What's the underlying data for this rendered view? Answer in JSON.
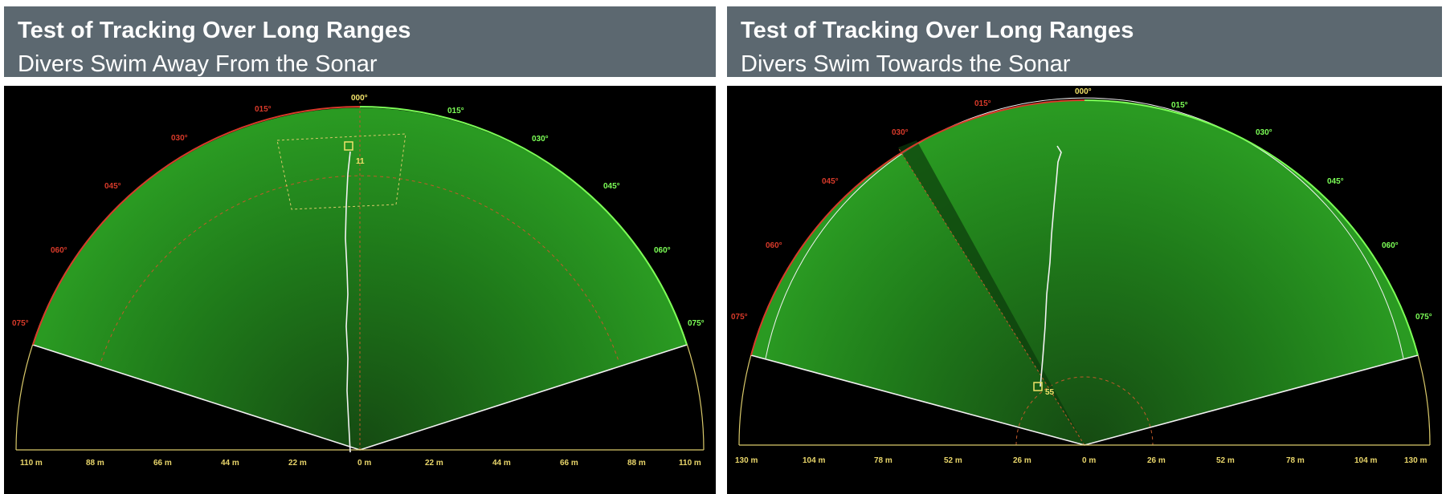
{
  "colors": {
    "header_bg": "#5c6870",
    "sonar_bg": "#000000",
    "sonar_fill": "#1f7a1a",
    "range_label": "#e8d56a",
    "bearing_left": "#d83a2a",
    "bearing_right": "#7cff57",
    "track": "#f2f2f2"
  },
  "panels": [
    {
      "title": "Test of Tracking Over Long Ranges",
      "subtitle": "Divers Swim Away From the Sonar",
      "bearings_left": [
        "000°",
        "015°",
        "030°",
        "045°",
        "060°",
        "075°"
      ],
      "bearings_right": [
        "015°",
        "030°",
        "045°",
        "060°",
        "075°"
      ],
      "range_labels": [
        "110 m",
        "88 m",
        "66 m",
        "44 m",
        "22 m",
        "0 m",
        "22 m",
        "44 m",
        "66 m",
        "88 m",
        "110 m"
      ],
      "target_label": "11"
    },
    {
      "title": "Test of Tracking Over Long Ranges",
      "subtitle": "Divers Swim Towards the Sonar",
      "bearings_left": [
        "000°",
        "015°",
        "030°",
        "045°",
        "060°",
        "075°"
      ],
      "bearings_right": [
        "015°",
        "030°",
        "045°",
        "060°",
        "075°"
      ],
      "range_labels": [
        "130 m",
        "104 m",
        "78 m",
        "52 m",
        "26 m",
        "0 m",
        "26 m",
        "52 m",
        "78 m",
        "104 m",
        "130 m"
      ],
      "target_label": "55"
    }
  ]
}
